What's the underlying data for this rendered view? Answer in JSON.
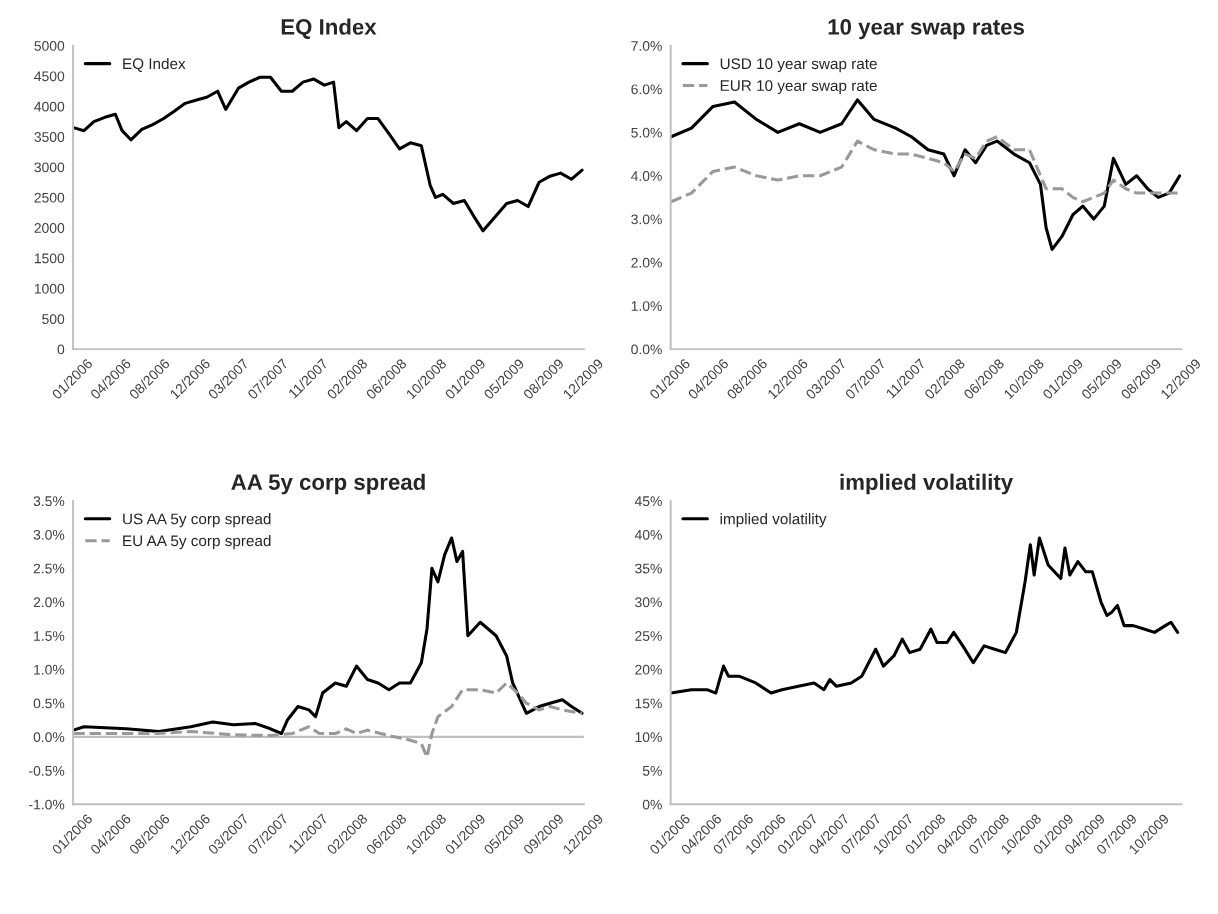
{
  "chart_data": [
    {
      "type": "line",
      "title": "EQ Index",
      "legend": "top left",
      "grid": false,
      "marker": "none",
      "xlim": [
        "2006-01-01",
        "2009-12-20"
      ],
      "xticks": [
        {
          "value": "2006-01-01",
          "label": "01/2006"
        },
        {
          "value": "2006-04-20",
          "label": "04/2006"
        },
        {
          "value": "2006-08-08",
          "label": "08/2006"
        },
        {
          "value": "2006-12-01",
          "label": "12/2006"
        },
        {
          "value": "2007-03-20",
          "label": "03/2007"
        },
        {
          "value": "2007-07-10",
          "label": "07/2007"
        },
        {
          "value": "2007-11-01",
          "label": "11/2007"
        },
        {
          "value": "2008-02-20",
          "label": "02/2008"
        },
        {
          "value": "2008-06-10",
          "label": "06/2008"
        },
        {
          "value": "2008-10-01",
          "label": "10/2008"
        },
        {
          "value": "2009-01-20",
          "label": "01/2009"
        },
        {
          "value": "2009-05-10",
          "label": "05/2009"
        },
        {
          "value": "2009-08-30",
          "label": "08/2009"
        },
        {
          "value": "2009-12-20",
          "label": "12/2009"
        }
      ],
      "ylim": [
        0,
        5000
      ],
      "yticks": [
        0,
        500,
        1000,
        1500,
        2000,
        2500,
        3000,
        3500,
        4000,
        4500,
        5000
      ],
      "series": [
        {
          "name": "EQ Index",
          "color": "#000000",
          "line_style": "solid",
          "x": [
            "2006-01-02",
            "2006-02-01",
            "2006-03-01",
            "2006-04-01",
            "2006-05-01",
            "2006-05-20",
            "2006-06-14",
            "2006-07-15",
            "2006-08-15",
            "2006-09-15",
            "2006-10-15",
            "2006-11-15",
            "2006-12-15",
            "2007-01-15",
            "2007-02-15",
            "2007-03-10",
            "2007-04-15",
            "2007-05-15",
            "2007-06-15",
            "2007-07-15",
            "2007-08-15",
            "2007-09-15",
            "2007-10-15",
            "2007-11-15",
            "2007-12-15",
            "2008-01-10",
            "2008-01-25",
            "2008-02-15",
            "2008-03-15",
            "2008-04-15",
            "2008-05-15",
            "2008-06-15",
            "2008-07-15",
            "2008-08-15",
            "2008-09-15",
            "2008-10-10",
            "2008-10-25",
            "2008-11-15",
            "2008-12-15",
            "2009-01-15",
            "2009-02-15",
            "2009-03-09",
            "2009-04-15",
            "2009-05-15",
            "2009-06-15",
            "2009-07-15",
            "2009-08-15",
            "2009-09-15",
            "2009-10-15",
            "2009-11-15",
            "2009-12-15"
          ],
          "values": [
            3650,
            3600,
            3750,
            3820,
            3870,
            3600,
            3450,
            3620,
            3700,
            3800,
            3920,
            4050,
            4100,
            4150,
            4250,
            3950,
            4300,
            4400,
            4480,
            4480,
            4250,
            4250,
            4400,
            4450,
            4350,
            4400,
            3650,
            3750,
            3600,
            3800,
            3800,
            3550,
            3300,
            3400,
            3350,
            2700,
            2500,
            2550,
            2400,
            2450,
            2150,
            1950,
            2200,
            2400,
            2450,
            2350,
            2750,
            2850,
            2900,
            2800,
            2950
          ]
        }
      ]
    },
    {
      "type": "line",
      "title": "10 year swap rates",
      "legend": "top left",
      "grid": false,
      "marker": "none",
      "xlim": [
        "2006-01-01",
        "2009-12-20"
      ],
      "xticks": [
        {
          "value": "2006-01-01",
          "label": "01/2006"
        },
        {
          "value": "2006-04-20",
          "label": "04/2006"
        },
        {
          "value": "2006-08-08",
          "label": "08/2006"
        },
        {
          "value": "2006-12-01",
          "label": "12/2006"
        },
        {
          "value": "2007-03-20",
          "label": "03/2007"
        },
        {
          "value": "2007-07-10",
          "label": "07/2007"
        },
        {
          "value": "2007-11-01",
          "label": "11/2007"
        },
        {
          "value": "2008-02-20",
          "label": "02/2008"
        },
        {
          "value": "2008-06-10",
          "label": "06/2008"
        },
        {
          "value": "2008-10-01",
          "label": "10/2008"
        },
        {
          "value": "2009-01-20",
          "label": "01/2009"
        },
        {
          "value": "2009-05-10",
          "label": "05/2009"
        },
        {
          "value": "2009-08-30",
          "label": "08/2009"
        },
        {
          "value": "2009-12-20",
          "label": "12/2009"
        }
      ],
      "ylim": [
        0,
        7
      ],
      "yticks": [
        {
          "value": 0,
          "label": "0.0%"
        },
        {
          "value": 1,
          "label": "1.0%"
        },
        {
          "value": 2,
          "label": "2.0%"
        },
        {
          "value": 3,
          "label": "3.0%"
        },
        {
          "value": 4,
          "label": "4.0%"
        },
        {
          "value": 5,
          "label": "5.0%"
        },
        {
          "value": 6,
          "label": "6.0%"
        },
        {
          "value": 7,
          "label": "7.0%"
        }
      ],
      "series": [
        {
          "name": "USD 10 year swap rate",
          "color": "#000000",
          "line_style": "solid",
          "x": [
            "2006-01-02",
            "2006-03-01",
            "2006-05-01",
            "2006-07-01",
            "2006-09-01",
            "2006-11-01",
            "2007-01-01",
            "2007-03-01",
            "2007-05-01",
            "2007-06-15",
            "2007-08-01",
            "2007-10-01",
            "2007-11-15",
            "2008-01-01",
            "2008-02-15",
            "2008-03-15",
            "2008-04-15",
            "2008-05-15",
            "2008-06-15",
            "2008-07-15",
            "2008-09-01",
            "2008-10-15",
            "2008-11-15",
            "2008-12-01",
            "2008-12-18",
            "2009-01-15",
            "2009-02-15",
            "2009-03-15",
            "2009-04-15",
            "2009-05-15",
            "2009-06-10",
            "2009-07-15",
            "2009-08-15",
            "2009-09-15",
            "2009-10-15",
            "2009-11-15",
            "2009-12-15"
          ],
          "values": [
            4.9,
            5.1,
            5.6,
            5.7,
            5.3,
            5.0,
            5.2,
            5.0,
            5.2,
            5.75,
            5.3,
            5.1,
            4.9,
            4.6,
            4.5,
            4.0,
            4.6,
            4.3,
            4.7,
            4.8,
            4.5,
            4.3,
            3.8,
            2.8,
            2.3,
            2.6,
            3.1,
            3.3,
            3.0,
            3.3,
            4.4,
            3.8,
            4.0,
            3.7,
            3.5,
            3.6,
            4.0
          ]
        },
        {
          "name": "EUR 10 year swap rate",
          "color": "#999999",
          "line_style": "dashed",
          "x": [
            "2006-01-02",
            "2006-03-01",
            "2006-05-01",
            "2006-07-01",
            "2006-09-01",
            "2006-11-01",
            "2007-01-01",
            "2007-03-01",
            "2007-05-01",
            "2007-06-15",
            "2007-08-01",
            "2007-10-01",
            "2007-11-15",
            "2008-01-01",
            "2008-02-15",
            "2008-03-15",
            "2008-04-15",
            "2008-05-15",
            "2008-06-15",
            "2008-07-15",
            "2008-09-01",
            "2008-10-15",
            "2008-11-15",
            "2008-12-01",
            "2008-12-18",
            "2009-01-15",
            "2009-02-15",
            "2009-03-15",
            "2009-04-15",
            "2009-05-15",
            "2009-06-10",
            "2009-07-15",
            "2009-08-15",
            "2009-09-15",
            "2009-10-15",
            "2009-11-15",
            "2009-12-15"
          ],
          "values": [
            3.4,
            3.6,
            4.1,
            4.2,
            4.0,
            3.9,
            4.0,
            4.0,
            4.2,
            4.8,
            4.6,
            4.5,
            4.5,
            4.4,
            4.3,
            4.1,
            4.5,
            4.4,
            4.8,
            4.9,
            4.6,
            4.6,
            4.0,
            3.7,
            3.7,
            3.7,
            3.5,
            3.4,
            3.5,
            3.6,
            3.9,
            3.7,
            3.6,
            3.6,
            3.6,
            3.6,
            3.6
          ]
        }
      ]
    },
    {
      "type": "line",
      "title": "AA 5y corp spread",
      "legend": "top left",
      "grid": false,
      "marker": "none",
      "xlim": [
        "2006-01-01",
        "2009-12-20"
      ],
      "xticks": [
        {
          "value": "2006-01-01",
          "label": "01/2006"
        },
        {
          "value": "2006-04-20",
          "label": "04/2006"
        },
        {
          "value": "2006-08-08",
          "label": "08/2006"
        },
        {
          "value": "2006-12-01",
          "label": "12/2006"
        },
        {
          "value": "2007-03-20",
          "label": "03/2007"
        },
        {
          "value": "2007-07-10",
          "label": "07/2007"
        },
        {
          "value": "2007-11-01",
          "label": "11/2007"
        },
        {
          "value": "2008-02-20",
          "label": "02/2008"
        },
        {
          "value": "2008-06-10",
          "label": "06/2008"
        },
        {
          "value": "2008-10-01",
          "label": "10/2008"
        },
        {
          "value": "2009-01-20",
          "label": "01/2009"
        },
        {
          "value": "2009-05-10",
          "label": "05/2009"
        },
        {
          "value": "2009-08-30",
          "label": "09/2009"
        },
        {
          "value": "2009-12-20",
          "label": "12/2009"
        }
      ],
      "ylim": [
        -1,
        3.5
      ],
      "yticks": [
        {
          "value": -1,
          "label": "-1.0%"
        },
        {
          "value": -0.5,
          "label": "-0.5%"
        },
        {
          "value": 0,
          "label": "0.0%"
        },
        {
          "value": 0.5,
          "label": "0.5%"
        },
        {
          "value": 1,
          "label": "1.0%"
        },
        {
          "value": 1.5,
          "label": "1.5%"
        },
        {
          "value": 2,
          "label": "2.0%"
        },
        {
          "value": 2.5,
          "label": "2.5%"
        },
        {
          "value": 3,
          "label": "3.0%"
        },
        {
          "value": 3.5,
          "label": "3.5%"
        }
      ],
      "ref_lines": [
        {
          "axis": "y",
          "value": 0,
          "color": "#bfbfbf",
          "line_style": "solid"
        }
      ],
      "series": [
        {
          "name": "US AA 5y corp spread",
          "color": "#000000",
          "line_style": "solid",
          "x": [
            "2006-01-02",
            "2006-02-01",
            "2006-06-01",
            "2006-09-01",
            "2006-12-01",
            "2007-02-01",
            "2007-04-01",
            "2007-06-01",
            "2007-07-15",
            "2007-08-15",
            "2007-09-01",
            "2007-10-01",
            "2007-11-01",
            "2007-11-20",
            "2007-12-10",
            "2008-01-15",
            "2008-02-15",
            "2008-03-15",
            "2008-04-15",
            "2008-05-15",
            "2008-06-15",
            "2008-07-15",
            "2008-08-15",
            "2008-09-15",
            "2008-10-01",
            "2008-10-15",
            "2008-11-01",
            "2008-11-20",
            "2008-12-10",
            "2008-12-25",
            "2009-01-10",
            "2009-01-25",
            "2009-03-01",
            "2009-04-15",
            "2009-05-15",
            "2009-06-01",
            "2009-07-10",
            "2009-08-15",
            "2009-09-15",
            "2009-10-20",
            "2009-11-15",
            "2009-12-15"
          ],
          "values": [
            0.1,
            0.15,
            0.12,
            0.08,
            0.15,
            0.22,
            0.18,
            0.2,
            0.12,
            0.05,
            0.25,
            0.45,
            0.4,
            0.3,
            0.65,
            0.8,
            0.75,
            1.05,
            0.85,
            0.8,
            0.7,
            0.8,
            0.8,
            1.1,
            1.6,
            2.5,
            2.3,
            2.7,
            2.95,
            2.6,
            2.75,
            1.5,
            1.7,
            1.5,
            1.2,
            0.8,
            0.35,
            0.45,
            0.5,
            0.55,
            0.45,
            0.35
          ]
        },
        {
          "name": "EU AA 5y corp spread",
          "color": "#999999",
          "line_style": "dashed",
          "x": [
            "2006-01-02",
            "2006-06-01",
            "2006-09-01",
            "2006-12-01",
            "2007-04-01",
            "2007-07-15",
            "2007-09-15",
            "2007-11-01",
            "2007-12-01",
            "2008-01-15",
            "2008-02-15",
            "2008-03-15",
            "2008-04-15",
            "2008-06-15",
            "2008-08-15",
            "2008-09-15",
            "2008-10-01",
            "2008-10-15",
            "2008-11-01",
            "2008-12-10",
            "2009-01-10",
            "2009-03-01",
            "2009-04-15",
            "2009-05-15",
            "2009-06-15",
            "2009-07-10",
            "2009-08-15",
            "2009-09-15",
            "2009-10-20",
            "2009-12-15"
          ],
          "values": [
            0.05,
            0.05,
            0.05,
            0.08,
            0.03,
            0.02,
            0.05,
            0.15,
            0.05,
            0.05,
            0.12,
            0.05,
            0.1,
            0.02,
            -0.05,
            -0.1,
            -0.3,
            0.05,
            0.3,
            0.45,
            0.7,
            0.7,
            0.65,
            0.8,
            0.65,
            0.5,
            0.4,
            0.45,
            0.4,
            0.35
          ]
        }
      ]
    },
    {
      "type": "line",
      "title": "implied volatility",
      "legend": "top left",
      "grid": false,
      "marker": "none",
      "xlim": [
        "2006-01-01",
        "2009-12-31"
      ],
      "xticks": [
        {
          "value": "2006-01-01",
          "label": "01/2006"
        },
        {
          "value": "2006-04-01",
          "label": "04/2006"
        },
        {
          "value": "2006-07-01",
          "label": "07/2006"
        },
        {
          "value": "2006-10-01",
          "label": "10/2006"
        },
        {
          "value": "2007-01-01",
          "label": "01/2007"
        },
        {
          "value": "2007-04-01",
          "label": "04/2007"
        },
        {
          "value": "2007-07-01",
          "label": "07/2007"
        },
        {
          "value": "2007-10-01",
          "label": "10/2007"
        },
        {
          "value": "2008-01-01",
          "label": "01/2008"
        },
        {
          "value": "2008-04-01",
          "label": "04/2008"
        },
        {
          "value": "2008-07-01",
          "label": "07/2008"
        },
        {
          "value": "2008-10-01",
          "label": "10/2008"
        },
        {
          "value": "2009-01-01",
          "label": "01/2009"
        },
        {
          "value": "2009-04-01",
          "label": "04/2009"
        },
        {
          "value": "2009-07-01",
          "label": "07/2009"
        },
        {
          "value": "2009-10-01",
          "label": "10/2009"
        }
      ],
      "ylim": [
        0,
        45
      ],
      "yticks": [
        {
          "value": 0,
          "label": "0%"
        },
        {
          "value": 5,
          "label": "5%"
        },
        {
          "value": 10,
          "label": "10%"
        },
        {
          "value": 15,
          "label": "15%"
        },
        {
          "value": 20,
          "label": "20%"
        },
        {
          "value": 25,
          "label": "25%"
        },
        {
          "value": 30,
          "label": "30%"
        },
        {
          "value": 35,
          "label": "35%"
        },
        {
          "value": 40,
          "label": "40%"
        },
        {
          "value": 45,
          "label": "45%"
        }
      ],
      "series": [
        {
          "name": "implied volatility",
          "color": "#000000",
          "line_style": "solid",
          "x": [
            "2006-01-02",
            "2006-03-01",
            "2006-04-15",
            "2006-05-10",
            "2006-06-01",
            "2006-06-15",
            "2006-07-15",
            "2006-09-01",
            "2006-10-15",
            "2006-11-15",
            "2007-01-01",
            "2007-02-15",
            "2007-03-15",
            "2007-04-01",
            "2007-04-20",
            "2007-06-01",
            "2007-07-01",
            "2007-08-10",
            "2007-09-01",
            "2007-10-01",
            "2007-10-25",
            "2007-11-15",
            "2007-12-15",
            "2008-01-15",
            "2008-02-01",
            "2008-03-01",
            "2008-03-20",
            "2008-04-15",
            "2008-05-15",
            "2008-06-15",
            "2008-07-15",
            "2008-08-15",
            "2008-09-15",
            "2008-10-10",
            "2008-10-25",
            "2008-11-05",
            "2008-11-20",
            "2008-12-15",
            "2009-01-20",
            "2009-02-01",
            "2009-02-15",
            "2009-03-10",
            "2009-04-01",
            "2009-04-20",
            "2009-05-15",
            "2009-06-01",
            "2009-06-15",
            "2009-07-01",
            "2009-07-20",
            "2009-08-15",
            "2009-09-15",
            "2009-10-15",
            "2009-11-15",
            "2009-12-01",
            "2009-12-20"
          ],
          "values": [
            16.5,
            17,
            17,
            16.5,
            20.5,
            19,
            19,
            18,
            16.5,
            17,
            17.5,
            18,
            17,
            18.5,
            17.5,
            18,
            19,
            23,
            20.5,
            22,
            24.5,
            22.5,
            23,
            26,
            24,
            24,
            25.5,
            23.5,
            21,
            23.5,
            23,
            22.5,
            25.5,
            33,
            38.5,
            34,
            39.5,
            35.5,
            33.5,
            38,
            34,
            36,
            34.5,
            34.5,
            30,
            28,
            28.5,
            29.5,
            26.5,
            26.5,
            26,
            25.5,
            26.5,
            27,
            25.5
          ]
        }
      ]
    }
  ]
}
